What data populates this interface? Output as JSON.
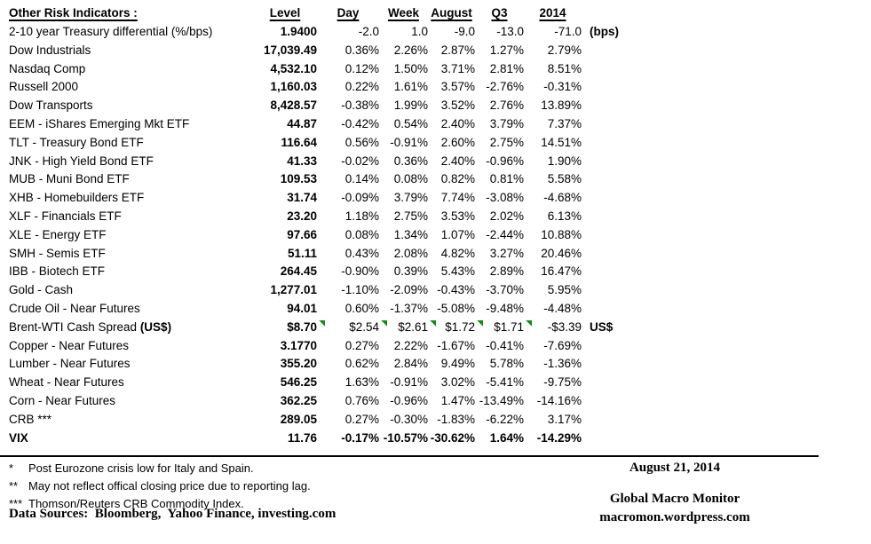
{
  "title": "Other Risk Indicators :",
  "table": {
    "columns": [
      "Level",
      "Day",
      "Week",
      "August",
      "Q3",
      "2014"
    ],
    "rows": [
      {
        "label": "2-10 year Treasury differential (%/bps)",
        "level": "1.9400",
        "day": "-2.0",
        "week": "1.0",
        "august": "-9.0",
        "q3": "-13.0",
        "y2014": "-71.0",
        "note": "(bps)",
        "bold": false,
        "flags": false
      },
      {
        "label": "Dow Industrials",
        "level": "17,039.49",
        "day": "0.36%",
        "week": "2.26%",
        "august": "2.87%",
        "q3": "1.27%",
        "y2014": "2.79%",
        "note": "",
        "bold": false,
        "flags": false
      },
      {
        "label": "Nasdaq Comp",
        "level": "4,532.10",
        "day": "0.12%",
        "week": "1.50%",
        "august": "3.71%",
        "q3": "2.81%",
        "y2014": "8.51%",
        "note": "",
        "bold": false,
        "flags": false
      },
      {
        "label": "Russell 2000",
        "level": "1,160.03",
        "day": "0.22%",
        "week": "1.61%",
        "august": "3.57%",
        "q3": "-2.76%",
        "y2014": "-0.31%",
        "note": "",
        "bold": false,
        "flags": false
      },
      {
        "label": "Dow Transports",
        "level": "8,428.57",
        "day": "-0.38%",
        "week": "1.99%",
        "august": "3.52%",
        "q3": "2.76%",
        "y2014": "13.89%",
        "note": "",
        "bold": false,
        "flags": false
      },
      {
        "label": "EEM - iShares Emerging Mkt ETF",
        "level": "44.87",
        "day": "-0.42%",
        "week": "0.54%",
        "august": "2.40%",
        "q3": "3.79%",
        "y2014": "7.37%",
        "note": "",
        "bold": false,
        "flags": false
      },
      {
        "label": "TLT - Treasury Bond ETF",
        "level": "116.64",
        "day": "0.56%",
        "week": "-0.91%",
        "august": "2.60%",
        "q3": "2.75%",
        "y2014": "14.51%",
        "note": "",
        "bold": false,
        "flags": false
      },
      {
        "label": "JNK - High Yield Bond ETF",
        "level": "41.33",
        "day": "-0.02%",
        "week": "0.36%",
        "august": "2.40%",
        "q3": "-0.96%",
        "y2014": "1.90%",
        "note": "",
        "bold": false,
        "flags": false
      },
      {
        "label": "MUB - Muni Bond ETF",
        "level": "109.53",
        "day": "0.14%",
        "week": "0.08%",
        "august": "0.82%",
        "q3": "0.81%",
        "y2014": "5.58%",
        "note": "",
        "bold": false,
        "flags": false
      },
      {
        "label": "XHB - Homebuilders ETF",
        "level": "31.74",
        "day": "-0.09%",
        "week": "3.79%",
        "august": "7.74%",
        "q3": "-3.08%",
        "y2014": "-4.68%",
        "note": "",
        "bold": false,
        "flags": false
      },
      {
        "label": "XLF - Financials ETF",
        "level": "23.20",
        "day": "1.18%",
        "week": "2.75%",
        "august": "3.53%",
        "q3": "2.02%",
        "y2014": "6.13%",
        "note": "",
        "bold": false,
        "flags": false
      },
      {
        "label": "XLE - Energy ETF",
        "level": "97.66",
        "day": "0.08%",
        "week": "1.34%",
        "august": "1.07%",
        "q3": "-2.44%",
        "y2014": "10.88%",
        "note": "",
        "bold": false,
        "flags": false
      },
      {
        "label": "SMH - Semis ETF",
        "level": "51.11",
        "day": "0.43%",
        "week": "2.08%",
        "august": "4.82%",
        "q3": "3.27%",
        "y2014": "20.46%",
        "note": "",
        "bold": false,
        "flags": false
      },
      {
        "label": "IBB - Biotech ETF",
        "level": "264.45",
        "day": "-0.90%",
        "week": "0.39%",
        "august": "5.43%",
        "q3": "2.89%",
        "y2014": "16.47%",
        "note": "",
        "bold": false,
        "flags": false
      },
      {
        "label": "Gold - Cash",
        "level": "1,277.01",
        "day": "-1.10%",
        "week": "-2.09%",
        "august": "-0.43%",
        "q3": "-3.70%",
        "y2014": "5.95%",
        "note": "",
        "bold": false,
        "flags": false
      },
      {
        "label": "Crude Oil - Near Futures",
        "level": "94.01",
        "day": "0.60%",
        "week": "-1.37%",
        "august": "-5.08%",
        "q3": "-9.48%",
        "y2014": "-4.48%",
        "note": "",
        "bold": false,
        "flags": false
      },
      {
        "label": "Brent-WTI Cash Spread ",
        "label_bold": "(US$)",
        "level": "$8.70",
        "day": "$2.54",
        "week": "$2.61",
        "august": "$1.72",
        "q3": "$1.71",
        "y2014": "-$3.39",
        "note": "US$",
        "bold": false,
        "flags": true
      },
      {
        "label": "Copper - Near Futures",
        "level": "3.1770",
        "day": "0.27%",
        "week": "2.22%",
        "august": "-1.67%",
        "q3": "-0.41%",
        "y2014": "-7.69%",
        "note": "",
        "bold": false,
        "flags": false
      },
      {
        "label": "Lumber - Near Futures",
        "level": "355.20",
        "day": "0.62%",
        "week": "2.84%",
        "august": "9.49%",
        "q3": "5.78%",
        "y2014": "-1.36%",
        "note": "",
        "bold": false,
        "flags": false
      },
      {
        "label": "Wheat - Near Futures",
        "level": "546.25",
        "day": "1.63%",
        "week": "-0.91%",
        "august": "3.02%",
        "q3": "-5.41%",
        "y2014": "-9.75%",
        "note": "",
        "bold": false,
        "flags": false
      },
      {
        "label": "Corn - Near Futures",
        "level": "362.25",
        "day": "0.76%",
        "week": "-0.96%",
        "august": "1.47%",
        "q3": "-13.49%",
        "y2014": "-14.16%",
        "note": "",
        "bold": false,
        "flags": false
      },
      {
        "label": "CRB ***",
        "level": "289.05",
        "day": "0.27%",
        "week": "-0.30%",
        "august": "-1.83%",
        "q3": "-6.22%",
        "y2014": "3.17%",
        "note": "",
        "bold": false,
        "flags": false
      },
      {
        "label": "VIX",
        "level": "11.76",
        "day": "-0.17%",
        "week": "-10.57%",
        "august": "-30.62%",
        "q3": "1.64%",
        "y2014": "-14.29%",
        "note": "",
        "bold": true,
        "flags": false
      }
    ]
  },
  "footnotes": [
    {
      "marker": "*",
      "text": "Post Eurozone crisis low for Italy and Spain."
    },
    {
      "marker": "**",
      "text": "May not reflect offical closing price due to reporting lag."
    },
    {
      "marker": "***",
      "text": "Thomson/Reuters CRB Commodity Index."
    }
  ],
  "data_sources": "Data Sources:  Bloomberg,  Yahoo Finance, investing.com",
  "footer_right": {
    "date": "August 21, 2014",
    "brand": "Global Macro Monitor",
    "url": "macromon.wordpress.com"
  },
  "colors": {
    "background": "#ffffff",
    "text": "#000000",
    "flag_green": "#168a16"
  }
}
